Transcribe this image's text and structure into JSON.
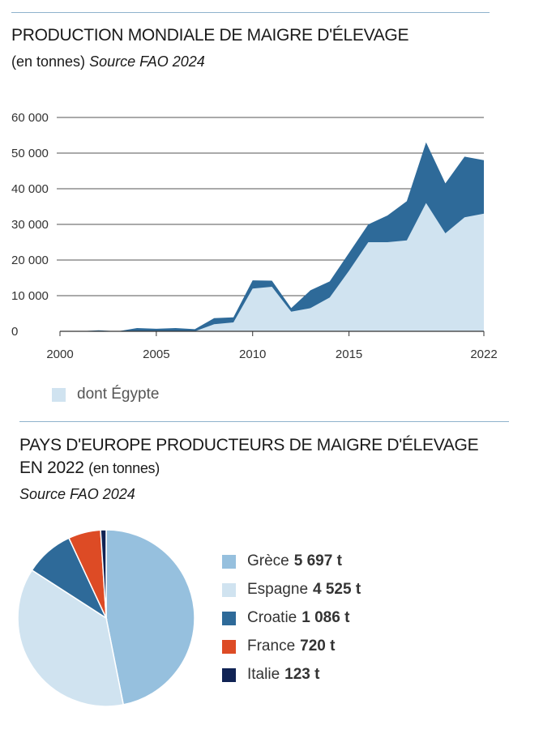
{
  "chart1": {
    "title": "PRODUCTION MONDIALE DE MAIGRE D'ÉLEVAGE",
    "unit": "(en tonnes)",
    "source": "Source FAO 2024",
    "legend_label": "dont Égypte"
  },
  "chart2": {
    "title_line1": "PAYS D'EUROPE PRODUCTEURS DE MAIGRE D'ÉLEVAGE",
    "title_line2": "EN 2022",
    "unit": "(en tonnes)",
    "source": "Source FAO 2024"
  },
  "chart_data": [
    {
      "type": "area",
      "title": "PRODUCTION MONDIALE DE MAIGRE D'ÉLEVAGE",
      "ylim": [
        0,
        60000
      ],
      "yticks": [
        0,
        10000,
        20000,
        30000,
        40000,
        50000,
        60000
      ],
      "ytick_labels": [
        "0",
        "10 000",
        "20 000",
        "30 000",
        "40 000",
        "50 000",
        "60 000"
      ],
      "xlim": [
        2000,
        2022
      ],
      "xticks": [
        2000,
        2005,
        2010,
        2015,
        2022
      ],
      "grid": true,
      "x": [
        2000,
        2001,
        2002,
        2003,
        2004,
        2005,
        2006,
        2007,
        2008,
        2009,
        2010,
        2011,
        2012,
        2013,
        2014,
        2015,
        2016,
        2017,
        2018,
        2019,
        2020,
        2021,
        2022
      ],
      "series": [
        {
          "name": "",
          "color": "#2e6a99",
          "values": [
            0,
            0,
            300,
            0,
            900,
            700,
            900,
            600,
            3700,
            3900,
            14300,
            14200,
            6500,
            11500,
            14000,
            22000,
            30000,
            32500,
            36500,
            53000,
            41500,
            49000,
            48000
          ]
        },
        {
          "name": "dont Égypte",
          "color": "#d0e3f0",
          "values": [
            0,
            0,
            0,
            0,
            0,
            0,
            0,
            0,
            2000,
            2500,
            12000,
            12500,
            5500,
            6500,
            9500,
            17000,
            25000,
            25000,
            25500,
            36000,
            27500,
            32000,
            33000
          ]
        }
      ]
    },
    {
      "type": "pie",
      "title": "PAYS D'EUROPE PRODUCTEURS DE MAIGRE D'ÉLEVAGE EN 2022",
      "slices": [
        {
          "label": "Grèce",
          "value": 5697,
          "value_text": "5 697 t",
          "color": "#96c0de"
        },
        {
          "label": "Espagne",
          "value": 4525,
          "value_text": "4 525 t",
          "color": "#d0e3f0"
        },
        {
          "label": "Croatie",
          "value": 1086,
          "value_text": "1 086 t",
          "color": "#2e6a99"
        },
        {
          "label": "France",
          "value": 720,
          "value_text": "720 t",
          "color": "#dd4b25"
        },
        {
          "label": "Italie",
          "value": 123,
          "value_text": "123 t",
          "color": "#102354"
        }
      ]
    }
  ]
}
